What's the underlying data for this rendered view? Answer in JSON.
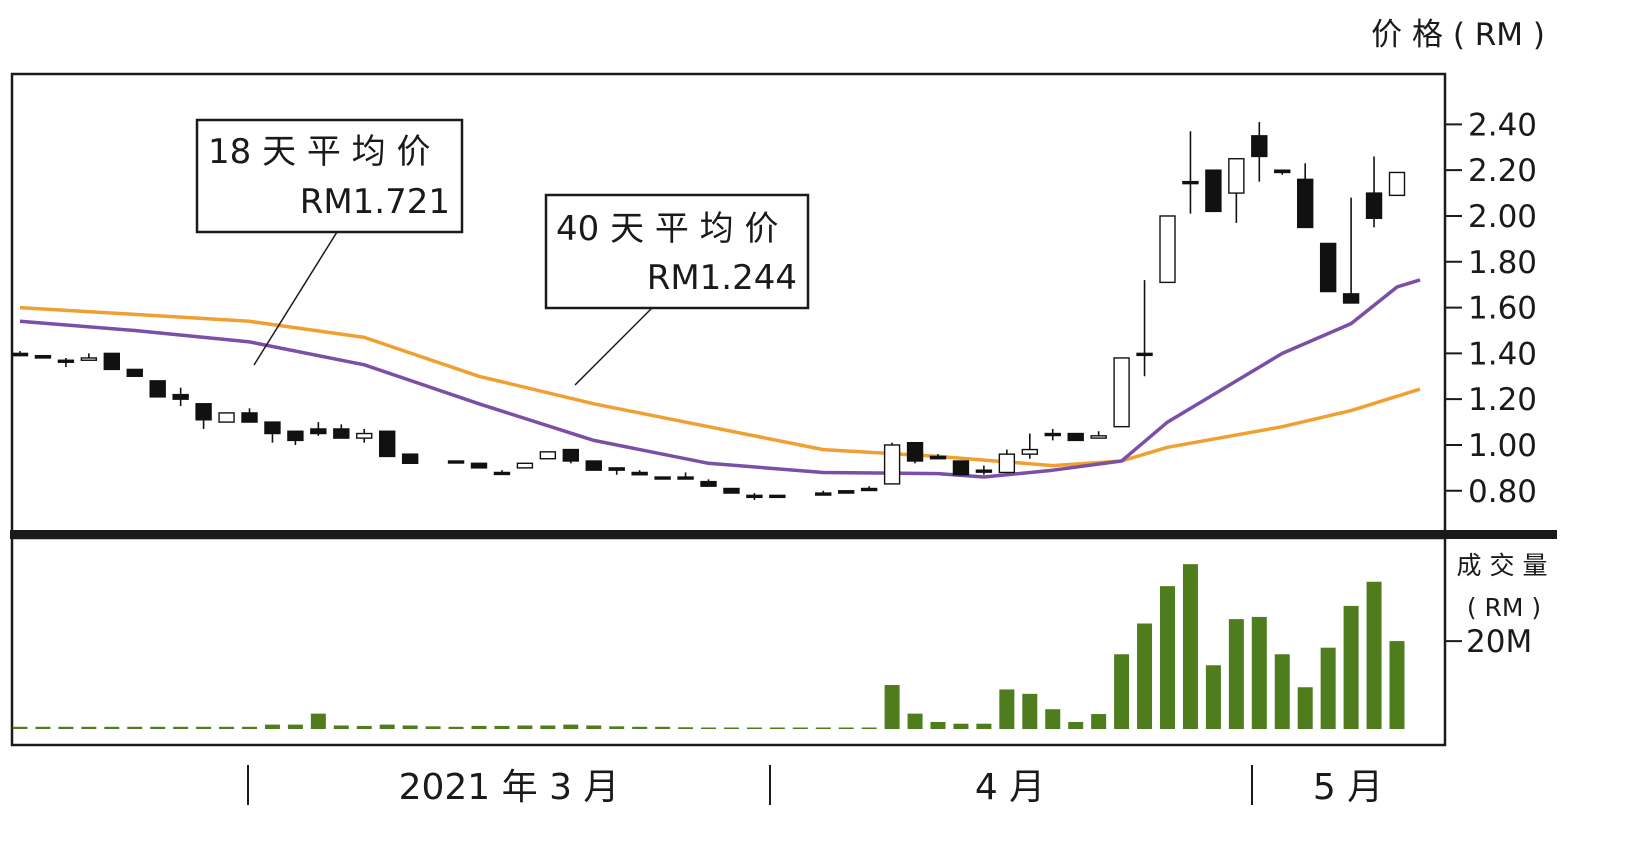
{
  "price_axis_title": "价 格 ( RM )",
  "volume_axis_title_line1": "成 交 量",
  "volume_axis_title_line2": "( RM )",
  "ma18_label": {
    "line1": "18 天 平 均 价",
    "line2": "RM1.721"
  },
  "ma40_label": {
    "line1": "40 天 平 均 价",
    "line2": "RM1.244"
  },
  "month_labels": [
    "2021 年 3 月",
    "4 月",
    "5 月"
  ],
  "colors": {
    "ma18": "#7b4fa6",
    "ma40": "#f0a030",
    "candle_down": "#111111",
    "candle_up": "#ffffff",
    "volume_bar": "#4f7d1e",
    "frame": "#1a1a1a"
  },
  "chart_data": [
    {
      "type": "candlestick",
      "ylabel": "价 格 ( RM )",
      "ylim": [
        0.62,
        2.62
      ],
      "yticks": [
        "2.40",
        "2.20",
        "2.00",
        "1.80",
        "1.60",
        "1.40",
        "1.20",
        "1.00",
        "0.80"
      ],
      "candles": [
        [
          1.4,
          1.39,
          1.41,
          1.39
        ],
        [
          1.39,
          1.38,
          1.39,
          1.38
        ],
        [
          1.37,
          1.37,
          1.38,
          1.34
        ],
        [
          1.37,
          1.38,
          1.4,
          1.37
        ],
        [
          1.4,
          1.33,
          1.4,
          1.33
        ],
        [
          1.33,
          1.3,
          1.33,
          1.3
        ],
        [
          1.28,
          1.21,
          1.28,
          1.21
        ],
        [
          1.22,
          1.2,
          1.25,
          1.17
        ],
        [
          1.18,
          1.11,
          1.18,
          1.07
        ],
        [
          1.1,
          1.14,
          1.14,
          1.1
        ],
        [
          1.14,
          1.1,
          1.16,
          1.1
        ],
        [
          1.1,
          1.05,
          1.1,
          1.01
        ],
        [
          1.06,
          1.02,
          1.06,
          1.0
        ],
        [
          1.07,
          1.05,
          1.1,
          1.04
        ],
        [
          1.07,
          1.03,
          1.09,
          1.03
        ],
        [
          1.03,
          1.05,
          1.07,
          1.01
        ],
        [
          1.06,
          0.95,
          1.06,
          0.95
        ],
        [
          0.96,
          0.92,
          0.96,
          0.92
        ],
        [
          null,
          null,
          null,
          null
        ],
        [
          0.93,
          0.93,
          0.93,
          0.93
        ],
        [
          0.92,
          0.9,
          0.92,
          0.9
        ],
        [
          0.88,
          0.88,
          0.89,
          0.87
        ],
        [
          0.9,
          0.92,
          0.92,
          0.9
        ],
        [
          0.94,
          0.97,
          0.97,
          0.94
        ],
        [
          0.98,
          0.93,
          0.98,
          0.92
        ],
        [
          0.93,
          0.89,
          0.93,
          0.89
        ],
        [
          0.9,
          0.89,
          0.9,
          0.87
        ],
        [
          0.88,
          0.87,
          0.89,
          0.87
        ],
        [
          0.86,
          0.86,
          0.86,
          0.86
        ],
        [
          0.86,
          0.86,
          0.88,
          0.85
        ],
        [
          0.84,
          0.82,
          0.85,
          0.82
        ],
        [
          0.81,
          0.79,
          0.81,
          0.79
        ],
        [
          0.78,
          0.78,
          0.79,
          0.76
        ],
        [
          0.78,
          0.78,
          0.78,
          0.78
        ],
        [
          null,
          null,
          null,
          null
        ],
        [
          0.79,
          0.79,
          0.8,
          0.79
        ],
        [
          0.8,
          0.79,
          0.8,
          0.79
        ],
        [
          0.81,
          0.81,
          0.82,
          0.81
        ],
        [
          0.83,
          1.0,
          1.01,
          0.83
        ],
        [
          1.01,
          0.93,
          1.01,
          0.92
        ],
        [
          0.95,
          0.94,
          0.96,
          0.94
        ],
        [
          0.93,
          0.87,
          0.93,
          0.87
        ],
        [
          0.89,
          0.89,
          0.91,
          0.87
        ],
        [
          0.88,
          0.96,
          0.98,
          0.88
        ],
        [
          0.96,
          0.98,
          1.05,
          0.94
        ],
        [
          1.05,
          1.05,
          1.07,
          1.02
        ],
        [
          1.05,
          1.02,
          1.05,
          1.02
        ],
        [
          1.03,
          1.04,
          1.06,
          1.03
        ],
        [
          1.08,
          1.38,
          1.38,
          1.08
        ],
        [
          1.4,
          1.4,
          1.72,
          1.3
        ],
        [
          1.71,
          2.0,
          2.0,
          1.71
        ],
        [
          2.15,
          2.15,
          2.37,
          2.01
        ],
        [
          2.2,
          2.02,
          2.2,
          2.02
        ],
        [
          2.1,
          2.25,
          2.25,
          1.97
        ],
        [
          2.35,
          2.26,
          2.41,
          2.15
        ],
        [
          2.2,
          2.19,
          2.2,
          2.18
        ],
        [
          2.16,
          1.95,
          2.23,
          1.95
        ],
        [
          1.88,
          1.67,
          1.88,
          1.67
        ],
        [
          1.66,
          1.62,
          2.08,
          1.62
        ],
        [
          2.1,
          1.99,
          2.26,
          1.95
        ],
        [
          2.09,
          2.19,
          2.19,
          2.09
        ]
      ],
      "series": [
        {
          "name": "18 天 平 均 价",
          "points": [
            [
              0,
              1.54
            ],
            [
              5,
              1.5
            ],
            [
              10,
              1.45
            ],
            [
              15,
              1.35
            ],
            [
              20,
              1.18
            ],
            [
              25,
              1.02
            ],
            [
              30,
              0.92
            ],
            [
              35,
              0.88
            ],
            [
              40,
              0.875
            ],
            [
              42,
              0.86
            ],
            [
              45,
              0.89
            ],
            [
              48,
              0.93
            ],
            [
              50,
              1.1
            ],
            [
              55,
              1.4
            ],
            [
              58,
              1.53
            ],
            [
              60,
              1.69
            ],
            [
              61,
              1.721
            ]
          ]
        },
        {
          "name": "40 天 平 均 价",
          "points": [
            [
              0,
              1.6
            ],
            [
              5,
              1.57
            ],
            [
              10,
              1.54
            ],
            [
              15,
              1.47
            ],
            [
              20,
              1.3
            ],
            [
              25,
              1.18
            ],
            [
              30,
              1.08
            ],
            [
              35,
              0.98
            ],
            [
              40,
              0.95
            ],
            [
              45,
              0.91
            ],
            [
              48,
              0.93
            ],
            [
              50,
              0.99
            ],
            [
              55,
              1.08
            ],
            [
              58,
              1.15
            ],
            [
              61,
              1.244
            ]
          ]
        }
      ]
    },
    {
      "type": "bar",
      "ylabel": "成 交 量 ( RM )",
      "yticks": [
        "20M"
      ],
      "ylim": [
        0,
        43
      ],
      "values": [
        0.5,
        0.5,
        0.5,
        0.5,
        0.5,
        0.5,
        0.5,
        0.5,
        0.5,
        0.5,
        0.5,
        1.0,
        1.0,
        3.5,
        0.8,
        0.7,
        1.0,
        0.8,
        0.6,
        0.5,
        0.7,
        0.7,
        0.8,
        0.8,
        1.0,
        0.8,
        0.6,
        0.5,
        0.5,
        0.4,
        0.3,
        0.2,
        0.2,
        0.2,
        0.2,
        0.2,
        0.2,
        0.3,
        10.0,
        3.5,
        1.6,
        1.2,
        1.2,
        9.0,
        8.0,
        4.5,
        1.6,
        3.4,
        17.0,
        24.0,
        32.5,
        37.5,
        14.5,
        25.0,
        25.5,
        17.0,
        9.5,
        18.5,
        28.0,
        33.5,
        20.0
      ]
    }
  ]
}
